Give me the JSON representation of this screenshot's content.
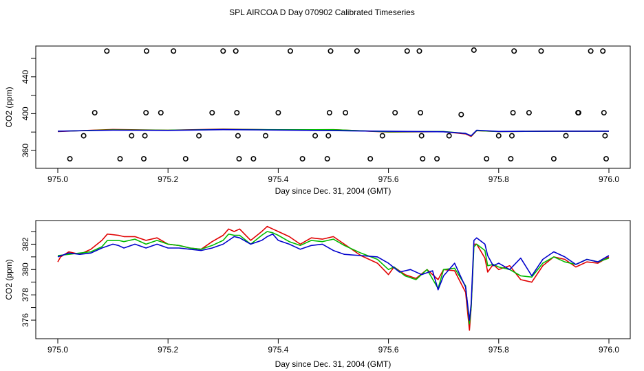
{
  "title": "SPL AIRCOA D  Day 070902  Calibrated Timeseries",
  "colors": {
    "red": "#e00000",
    "green": "#00bb00",
    "blue": "#0000cc",
    "axis": "#000000"
  },
  "chart_data": [
    {
      "type": "scatter",
      "xlabel": "Day since Dec. 31, 2004 (GMT)",
      "ylabel": "CO2 (ppm)",
      "xlim": [
        975.0,
        976.0
      ],
      "ylim": [
        345,
        470
      ],
      "x_ticks": [
        975.0,
        975.2,
        975.4,
        975.6,
        975.8,
        976.0
      ],
      "x_tick_labels": [
        "975.0",
        "975.2",
        "975.4",
        "975.6",
        "975.8",
        "976.0"
      ],
      "y_ticks": [
        360,
        380,
        400,
        420,
        440,
        460
      ],
      "y_tick_labels": [
        "360",
        "",
        "400",
        "",
        "440",
        ""
      ],
      "points": [
        {
          "x": 975.022,
          "y": 351
        },
        {
          "x": 975.047,
          "y": 376
        },
        {
          "x": 975.067,
          "y": 401
        },
        {
          "x": 975.089,
          "y": 468
        },
        {
          "x": 975.113,
          "y": 351
        },
        {
          "x": 975.134,
          "y": 376
        },
        {
          "x": 975.156,
          "y": 351
        },
        {
          "x": 975.158,
          "y": 376
        },
        {
          "x": 975.16,
          "y": 401
        },
        {
          "x": 975.161,
          "y": 468
        },
        {
          "x": 975.187,
          "y": 401
        },
        {
          "x": 975.21,
          "y": 468
        },
        {
          "x": 975.232,
          "y": 351
        },
        {
          "x": 975.256,
          "y": 376
        },
        {
          "x": 975.28,
          "y": 401
        },
        {
          "x": 975.3,
          "y": 468
        },
        {
          "x": 975.323,
          "y": 468
        },
        {
          "x": 975.325,
          "y": 401
        },
        {
          "x": 975.327,
          "y": 376
        },
        {
          "x": 975.329,
          "y": 351
        },
        {
          "x": 975.355,
          "y": 351
        },
        {
          "x": 975.377,
          "y": 376
        },
        {
          "x": 975.4,
          "y": 401
        },
        {
          "x": 975.422,
          "y": 468
        },
        {
          "x": 975.444,
          "y": 351
        },
        {
          "x": 975.467,
          "y": 376
        },
        {
          "x": 975.489,
          "y": 351
        },
        {
          "x": 975.491,
          "y": 376
        },
        {
          "x": 975.493,
          "y": 401
        },
        {
          "x": 975.495,
          "y": 468
        },
        {
          "x": 975.522,
          "y": 401
        },
        {
          "x": 975.543,
          "y": 468
        },
        {
          "x": 975.567,
          "y": 351
        },
        {
          "x": 975.589,
          "y": 376
        },
        {
          "x": 975.612,
          "y": 401
        },
        {
          "x": 975.634,
          "y": 468
        },
        {
          "x": 975.656,
          "y": 468
        },
        {
          "x": 975.658,
          "y": 401
        },
        {
          "x": 975.66,
          "y": 376
        },
        {
          "x": 975.662,
          "y": 351
        },
        {
          "x": 975.688,
          "y": 351
        },
        {
          "x": 975.71,
          "y": 376
        },
        {
          "x": 975.732,
          "y": 399
        },
        {
          "x": 975.755,
          "y": 469
        },
        {
          "x": 975.778,
          "y": 351
        },
        {
          "x": 975.8,
          "y": 376
        },
        {
          "x": 975.822,
          "y": 351
        },
        {
          "x": 975.824,
          "y": 376
        },
        {
          "x": 975.826,
          "y": 401
        },
        {
          "x": 975.828,
          "y": 468
        },
        {
          "x": 975.855,
          "y": 401
        },
        {
          "x": 975.877,
          "y": 468
        },
        {
          "x": 975.9,
          "y": 351
        },
        {
          "x": 975.922,
          "y": 376
        },
        {
          "x": 975.944,
          "y": 401
        },
        {
          "x": 975.945,
          "y": 401
        },
        {
          "x": 975.967,
          "y": 468
        },
        {
          "x": 975.989,
          "y": 468
        },
        {
          "x": 975.991,
          "y": 401
        },
        {
          "x": 975.993,
          "y": 376
        },
        {
          "x": 975.995,
          "y": 351
        }
      ],
      "series": [
        {
          "name": "red",
          "color": "#e00000",
          "x": [
            975.0,
            975.1,
            975.2,
            975.3,
            975.4,
            975.5,
            975.6,
            975.7,
            975.74,
            975.75,
            975.76,
            975.8,
            975.9,
            976.0
          ],
          "values": [
            380.6,
            382.8,
            382.0,
            383.2,
            382.4,
            382.6,
            380.0,
            380.4,
            378.0,
            375.2,
            381.5,
            380.5,
            381.0,
            381.0
          ]
        },
        {
          "name": "green",
          "color": "#00bb00",
          "x": [
            975.0,
            975.1,
            975.2,
            975.3,
            975.4,
            975.5,
            975.6,
            975.7,
            975.74,
            975.75,
            975.76,
            975.8,
            975.9,
            976.0
          ],
          "values": [
            380.9,
            382.4,
            382.0,
            382.8,
            382.5,
            382.5,
            380.3,
            380.6,
            378.5,
            375.8,
            381.6,
            380.6,
            380.9,
            380.9
          ]
        },
        {
          "name": "blue",
          "color": "#0000cc",
          "x": [
            975.0,
            975.1,
            975.2,
            975.3,
            975.4,
            975.5,
            975.6,
            975.7,
            975.74,
            975.75,
            975.76,
            975.8,
            975.9,
            976.0
          ],
          "values": [
            381.0,
            382.0,
            381.8,
            382.6,
            382.2,
            381.6,
            380.8,
            380.3,
            378.5,
            376.0,
            382.0,
            380.7,
            381.0,
            381.0
          ]
        }
      ]
    },
    {
      "type": "line",
      "xlabel": "Day since Dec. 31, 2004 (GMT)",
      "ylabel": "CO2 (ppm)",
      "xlim": [
        975.0,
        976.0
      ],
      "ylim": [
        374.6,
        384.0
      ],
      "x_ticks": [
        975.0,
        975.2,
        975.4,
        975.6,
        975.8,
        976.0
      ],
      "x_tick_labels": [
        "975.0",
        "975.2",
        "975.4",
        "975.6",
        "975.8",
        "976.0"
      ],
      "y_ticks": [
        376,
        377,
        378,
        379,
        380,
        381,
        382,
        383
      ],
      "y_tick_labels": [
        "376",
        "",
        "378",
        "",
        "380",
        "",
        "382",
        ""
      ],
      "series": [
        {
          "name": "red",
          "color": "#e00000",
          "x": [
            975.0,
            975.005,
            975.02,
            975.04,
            975.06,
            975.08,
            975.09,
            975.11,
            975.12,
            975.14,
            975.16,
            975.18,
            975.2,
            975.22,
            975.24,
            975.26,
            975.28,
            975.3,
            975.31,
            975.32,
            975.33,
            975.35,
            975.37,
            975.38,
            975.39,
            975.4,
            975.42,
            975.44,
            975.46,
            975.48,
            975.5,
            975.52,
            975.55,
            975.58,
            975.6,
            975.61,
            975.63,
            975.65,
            975.67,
            975.69,
            975.7,
            975.72,
            975.74,
            975.747,
            975.75,
            975.755,
            975.76,
            975.775,
            975.78,
            975.79,
            975.8,
            975.82,
            975.84,
            975.86,
            975.88,
            975.9,
            975.92,
            975.94,
            975.96,
            975.98,
            976.0
          ],
          "values": [
            380.6,
            381.0,
            381.4,
            381.2,
            381.6,
            382.3,
            382.8,
            382.7,
            382.6,
            382.6,
            382.3,
            382.5,
            382.0,
            381.9,
            381.7,
            381.6,
            382.2,
            382.7,
            383.2,
            383.0,
            383.2,
            382.3,
            383.0,
            383.4,
            383.2,
            383.0,
            382.6,
            382.0,
            382.5,
            382.4,
            382.6,
            382.0,
            381.1,
            380.5,
            379.6,
            380.2,
            379.6,
            379.3,
            380.0,
            379.2,
            380.0,
            379.9,
            378.2,
            375.2,
            377.0,
            382.0,
            382.0,
            380.9,
            379.8,
            380.4,
            380.0,
            380.3,
            379.2,
            379.0,
            380.3,
            381.0,
            380.8,
            380.2,
            380.6,
            380.5,
            381.0
          ]
        },
        {
          "name": "green",
          "color": "#00bb00",
          "x": [
            975.0,
            975.02,
            975.04,
            975.06,
            975.08,
            975.09,
            975.11,
            975.12,
            975.14,
            975.16,
            975.18,
            975.2,
            975.22,
            975.24,
            975.26,
            975.28,
            975.3,
            975.31,
            975.32,
            975.33,
            975.35,
            975.37,
            975.38,
            975.39,
            975.4,
            975.42,
            975.44,
            975.46,
            975.48,
            975.5,
            975.52,
            975.55,
            975.58,
            975.6,
            975.61,
            975.63,
            975.65,
            975.67,
            975.69,
            975.7,
            975.72,
            975.74,
            975.747,
            975.75,
            975.755,
            975.76,
            975.775,
            975.78,
            975.79,
            975.8,
            975.82,
            975.84,
            975.86,
            975.88,
            975.9,
            975.92,
            975.94,
            975.96,
            975.98,
            976.0
          ],
          "values": [
            381.1,
            381.2,
            381.3,
            381.4,
            381.8,
            382.3,
            382.3,
            382.2,
            382.4,
            382.0,
            382.3,
            382.0,
            381.9,
            381.7,
            381.6,
            381.9,
            382.3,
            382.8,
            382.7,
            382.7,
            382.0,
            382.7,
            383.0,
            382.9,
            382.7,
            382.2,
            381.9,
            382.3,
            382.2,
            382.4,
            381.9,
            381.3,
            380.8,
            380.0,
            380.2,
            379.5,
            379.2,
            380.0,
            378.5,
            380.0,
            380.1,
            378.7,
            375.7,
            377.0,
            381.8,
            382.0,
            381.5,
            380.3,
            380.4,
            380.2,
            380.0,
            379.5,
            379.4,
            380.5,
            381.0,
            380.6,
            380.4,
            380.8,
            380.6,
            380.9
          ]
        },
        {
          "name": "blue",
          "color": "#0000cc",
          "x": [
            975.0,
            975.02,
            975.04,
            975.06,
            975.08,
            975.1,
            975.11,
            975.12,
            975.14,
            975.16,
            975.18,
            975.2,
            975.22,
            975.24,
            975.26,
            975.28,
            975.3,
            975.31,
            975.32,
            975.33,
            975.35,
            975.37,
            975.38,
            975.39,
            975.4,
            975.42,
            975.44,
            975.46,
            975.48,
            975.5,
            975.52,
            975.55,
            975.58,
            975.6,
            975.62,
            975.64,
            975.66,
            975.68,
            975.69,
            975.7,
            975.72,
            975.74,
            975.747,
            975.75,
            975.755,
            975.76,
            975.775,
            975.78,
            975.79,
            975.8,
            975.82,
            975.84,
            975.86,
            975.88,
            975.9,
            975.92,
            975.94,
            975.96,
            975.98,
            976.0
          ],
          "values": [
            381.0,
            381.3,
            381.2,
            381.3,
            381.7,
            382.0,
            381.9,
            381.7,
            382.0,
            381.7,
            382.0,
            381.7,
            381.7,
            381.6,
            381.5,
            381.7,
            382.0,
            382.3,
            382.6,
            382.5,
            382.0,
            382.3,
            382.6,
            382.8,
            382.3,
            382.0,
            381.6,
            381.9,
            382.0,
            381.5,
            381.2,
            381.1,
            381.0,
            380.5,
            379.8,
            380.0,
            379.6,
            379.9,
            378.4,
            379.5,
            380.5,
            378.6,
            376.0,
            377.3,
            382.3,
            382.5,
            382.0,
            381.1,
            380.3,
            380.5,
            380.0,
            380.9,
            379.5,
            380.8,
            381.4,
            381.0,
            380.4,
            380.8,
            380.6,
            381.1
          ]
        }
      ]
    }
  ]
}
